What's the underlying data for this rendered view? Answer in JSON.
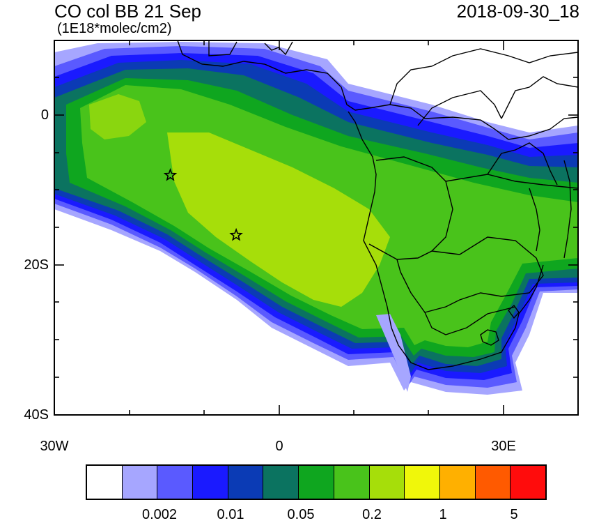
{
  "title": {
    "left": "CO col BB 21 Sep",
    "units": "(1E18*molec/cm2)",
    "right": "2018-09-30_18"
  },
  "axes": {
    "y_labels": [
      "0",
      "20S",
      "40S"
    ],
    "x_labels": [
      "30W",
      "0",
      "30E"
    ]
  },
  "markers": [
    {
      "name": "star-marker-1",
      "lon": -14.5,
      "lat": -8
    },
    {
      "name": "star-marker-2",
      "lon": -5.7,
      "lat": -16
    }
  ],
  "colorbar": {
    "colors": [
      "#ffffff",
      "#a6a6ff",
      "#5a5aff",
      "#1a1aff",
      "#0b3bb5",
      "#0b7360",
      "#0fa61f",
      "#49c31b",
      "#a6de0a",
      "#f0f70a",
      "#ffb000",
      "#ff5a00",
      "#ff0c0c"
    ],
    "labels": [
      "0.002",
      "0.01",
      "0.05",
      "0.2",
      "1",
      "5"
    ]
  },
  "chart_data": {
    "type": "heatmap",
    "title": "CO col BB 21 Sep",
    "subtitle": "(1E18*molec/cm2)",
    "valid_time": "2018-09-30_18",
    "lon_range": [
      -30,
      40
    ],
    "lat_range": [
      -40,
      10
    ],
    "x_ticks": [
      "30W",
      "0",
      "30E"
    ],
    "y_ticks": [
      "0",
      "20S",
      "40S"
    ],
    "legend_levels": [
      "0.002",
      "0.01",
      "0.05",
      "0.2",
      "1",
      "5"
    ],
    "legend_position": "bottom"
  }
}
